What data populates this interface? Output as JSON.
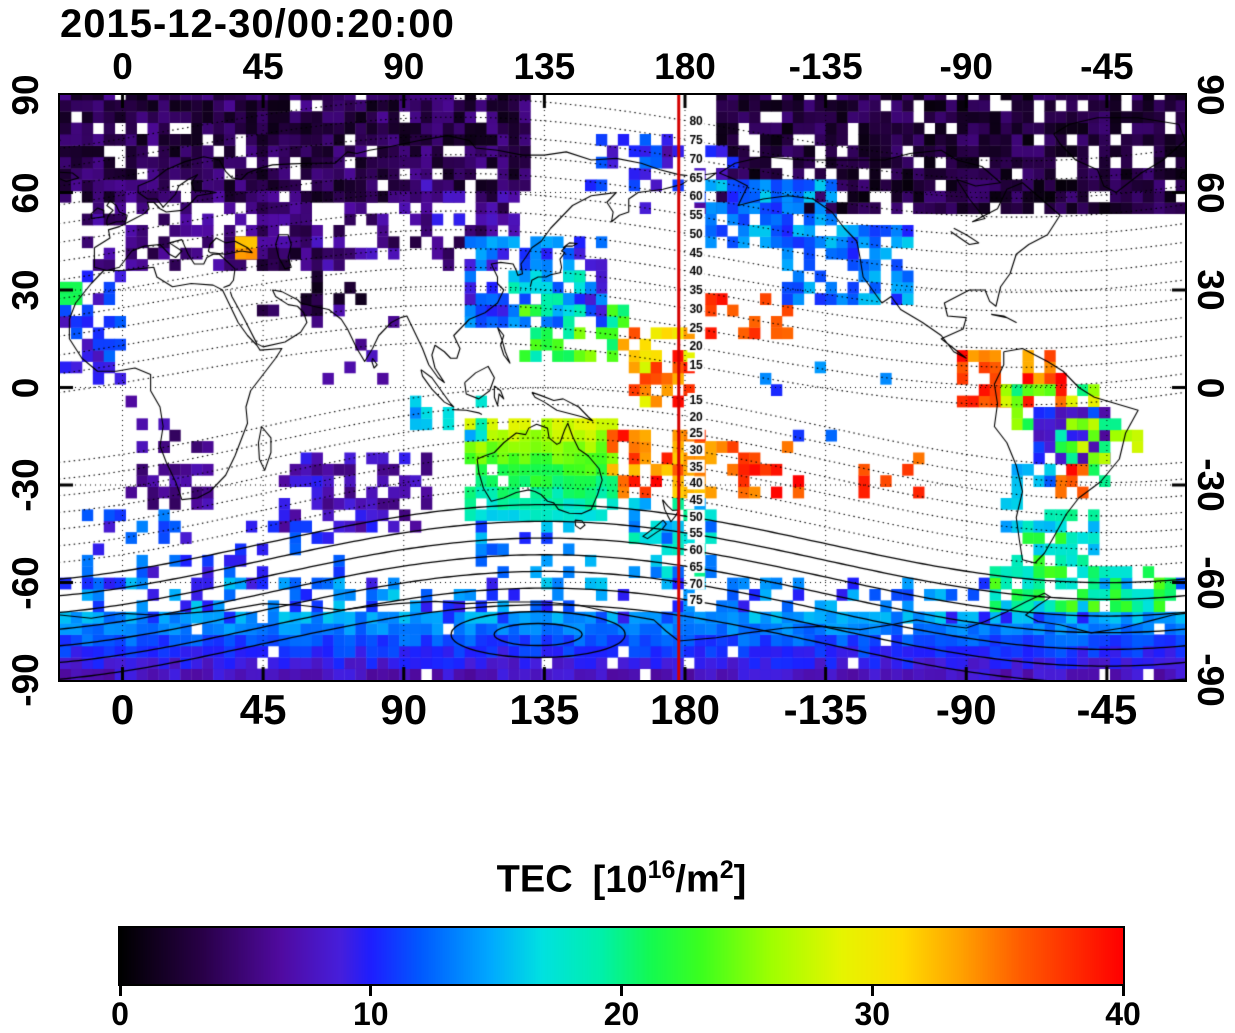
{
  "chart_data": {
    "type": "heatmap",
    "title": "2015-12-30/00:20:00",
    "projection": "equirectangular",
    "lon_range": [
      -20,
      340
    ],
    "lat_range": [
      -90,
      90
    ],
    "lon_tick_labels": [
      "0",
      "45",
      "90",
      "135",
      "180",
      "-135",
      "-90",
      "-45"
    ],
    "lon_tick_positions": [
      0,
      45,
      90,
      135,
      180,
      225,
      270,
      315
    ],
    "lat_tick_labels": [
      "90",
      "60",
      "30",
      "0",
      "-30",
      "-60",
      "-90"
    ],
    "lat_tick_positions": [
      90,
      60,
      30,
      0,
      -30,
      -60,
      -90
    ],
    "grid": {
      "lon_step": 45,
      "lat_step": 30,
      "style": "dotted"
    },
    "red_meridian_lon": 178,
    "red_meridian_color": "#d40000",
    "contours": {
      "kind": "magnetic-latitude",
      "levels_north": [
        80,
        75,
        70,
        65,
        60,
        55,
        50,
        45,
        40,
        35,
        30,
        25,
        20,
        15
      ],
      "levels_south": [
        15,
        20,
        25,
        30,
        35,
        40,
        45,
        50,
        55,
        60,
        65,
        70,
        75
      ]
    },
    "colorbar": {
      "label": "TEC [10^16/m^2]",
      "title_parts": {
        "name": "TEC",
        "open": "[10",
        "exp1": "16",
        "per": "/m",
        "exp2": "2",
        "close": "]"
      },
      "min": 0,
      "max": 40,
      "tick_labels": [
        "0",
        "10",
        "20",
        "30",
        "40"
      ],
      "tick_values": [
        0,
        10,
        20,
        30,
        40
      ],
      "stops": [
        [
          0.0,
          "#000000"
        ],
        [
          0.08,
          "#280046"
        ],
        [
          0.16,
          "#500AA0"
        ],
        [
          0.22,
          "#461EDC"
        ],
        [
          0.25,
          "#1E1EFF"
        ],
        [
          0.3,
          "#005AFF"
        ],
        [
          0.37,
          "#00AAFF"
        ],
        [
          0.42,
          "#00E1E1"
        ],
        [
          0.48,
          "#00F0AA"
        ],
        [
          0.53,
          "#14FA50"
        ],
        [
          0.58,
          "#3CFF1E"
        ],
        [
          0.65,
          "#A0FF00"
        ],
        [
          0.72,
          "#E6F500"
        ],
        [
          0.78,
          "#FFDC00"
        ],
        [
          0.84,
          "#FFA000"
        ],
        [
          0.9,
          "#FF5A00"
        ],
        [
          1.0,
          "#FF0000"
        ]
      ]
    },
    "tec_patches": [
      {
        "region": "arctic-eurasia",
        "lon": [
          -20,
          130
        ],
        "lat": [
          58,
          90
        ],
        "tec": [
          1,
          6
        ],
        "fill": 0.88
      },
      {
        "region": "arctic-america",
        "lon": [
          190,
          340
        ],
        "lat": [
          56,
          90
        ],
        "tec": [
          0.5,
          5
        ],
        "fill": 0.85
      },
      {
        "region": "europe-scatter",
        "lon": [
          -12,
          60
        ],
        "lat": [
          36,
          58
        ],
        "tec": [
          3,
          7
        ],
        "fill": 0.5
      },
      {
        "region": "caspian-cluster",
        "lon": [
          42,
          64
        ],
        "lat": [
          42,
          56
        ],
        "tec": [
          3,
          7
        ],
        "fill": 0.6
      },
      {
        "region": "central-asia",
        "lon": [
          60,
          126
        ],
        "lat": [
          38,
          58
        ],
        "tec": [
          3,
          8
        ],
        "fill": 0.4
      },
      {
        "region": "siberia-blue",
        "lon": [
          92,
          124
        ],
        "lat": [
          50,
          62
        ],
        "tec": [
          6,
          11
        ],
        "fill": 0.25
      },
      {
        "region": "mideast-dark",
        "lon": [
          38,
          78
        ],
        "lat": [
          22,
          40
        ],
        "tec": [
          1,
          5
        ],
        "fill": 0.28
      },
      {
        "region": "black-sea-spot",
        "lon": [
          36,
          40
        ],
        "lat": [
          42,
          46
        ],
        "tec": [
          32,
          35
        ],
        "fill": 1
      },
      {
        "region": "west-africa-atlantic",
        "lon": [
          -20,
          0
        ],
        "lat": [
          3,
          33
        ],
        "tec": [
          7,
          13
        ],
        "fill": 0.5
      },
      {
        "region": "left-edge-green",
        "lon": [
          -20,
          -16
        ],
        "lat": [
          26,
          30
        ],
        "tec": [
          20,
          22
        ],
        "fill": 1
      },
      {
        "region": "south-africa-purple",
        "lon": [
          3,
          28
        ],
        "lat": [
          -36,
          -18
        ],
        "tec": [
          4,
          8
        ],
        "fill": 0.5
      },
      {
        "region": "central-africa-purple",
        "lon": [
          -5,
          18
        ],
        "lat": [
          -18,
          -4
        ],
        "tec": [
          4,
          8
        ],
        "fill": 0.25
      },
      {
        "region": "india-sparse",
        "lon": [
          62,
          92
        ],
        "lat": [
          4,
          24
        ],
        "tec": [
          4,
          8
        ],
        "fill": 0.12
      },
      {
        "region": "east-asia-blue",
        "lon": [
          112,
          152
        ],
        "lat": [
          20,
          46
        ],
        "tec": [
          8,
          15
        ],
        "fill": 0.7
      },
      {
        "region": "japan-green",
        "lon": [
          126,
          150
        ],
        "lat": [
          24,
          36
        ],
        "tec": [
          13,
          20
        ],
        "fill": 0.55
      },
      {
        "region": "philippine-sea-green",
        "lon": [
          128,
          162
        ],
        "lat": [
          8,
          24
        ],
        "tec": [
          17,
          26
        ],
        "fill": 0.45
      },
      {
        "region": "pacific-equator-hot",
        "lon": [
          160,
          180
        ],
        "lat": [
          -6,
          16
        ],
        "tec": [
          28,
          40
        ],
        "fill": 0.5
      },
      {
        "region": "north-pacific-red",
        "lon": [
          188,
          212
        ],
        "lat": [
          16,
          28
        ],
        "tec": [
          35,
          40
        ],
        "fill": 0.5
      },
      {
        "region": "australia-green",
        "lon": [
          112,
          156
        ],
        "lat": [
          -40,
          -11
        ],
        "tec": [
          17,
          28
        ],
        "fill": 0.92,
        "gradient": "lat"
      },
      {
        "region": "nw-australia-cyan",
        "lon": [
          94,
          114
        ],
        "lat": [
          -16,
          -4
        ],
        "tec": [
          13,
          19
        ],
        "fill": 0.38
      },
      {
        "region": "coral-sea-red",
        "lon": [
          156,
          186
        ],
        "lat": [
          -34,
          -14
        ],
        "tec": [
          31,
          40
        ],
        "fill": 0.6
      },
      {
        "region": "south-pacific-red",
        "lon": [
          186,
          216
        ],
        "lat": [
          -32,
          -18
        ],
        "tec": [
          33,
          40
        ],
        "fill": 0.45
      },
      {
        "region": "east-pacific-red",
        "lon": [
          236,
          256
        ],
        "lat": [
          -32,
          -20
        ],
        "tec": [
          35,
          40
        ],
        "fill": 0.4
      },
      {
        "region": "indian-ocean-purple",
        "lon": [
          52,
          98
        ],
        "lat": [
          -42,
          -22
        ],
        "tec": [
          5,
          10
        ],
        "fill": 0.55
      },
      {
        "region": "south-atlantic-scatter",
        "lon": [
          -20,
          12
        ],
        "lat": [
          -60,
          -40
        ],
        "tec": [
          8,
          14
        ],
        "fill": 0.3
      },
      {
        "region": "south-indian-scatter",
        "lon": [
          15,
          70
        ],
        "lat": [
          -62,
          -44
        ],
        "tec": [
          8,
          13
        ],
        "fill": 0.27
      },
      {
        "region": "antarctic-band",
        "lon": [
          -20,
          340
        ],
        "lat": [
          -90,
          -72
        ],
        "tec": [
          7,
          14
        ],
        "fill": 0.97,
        "gradient": "lat"
      },
      {
        "region": "subantarctic-scatter",
        "lon": [
          -20,
          340
        ],
        "lat": [
          -72,
          -60
        ],
        "tec": [
          9,
          16
        ],
        "fill": 0.33
      },
      {
        "region": "sa-equator-red",
        "lon": [
          268,
          302
        ],
        "lat": [
          -6,
          9
        ],
        "tec": [
          33,
          40
        ],
        "fill": 0.55
      },
      {
        "region": "sa-north-yellow",
        "lon": [
          284,
          312
        ],
        "lat": [
          -13,
          1
        ],
        "tec": [
          20,
          30
        ],
        "fill": 0.5
      },
      {
        "region": "brazil-blue-blob",
        "lon": [
          292,
          314
        ],
        "lat": [
          -23,
          -6
        ],
        "tec": [
          6,
          12
        ],
        "fill": 0.9
      },
      {
        "region": "sa-green-ring",
        "lon": [
          300,
          324
        ],
        "lat": [
          -30,
          -12
        ],
        "tec": [
          18,
          28
        ],
        "fill": 0.55
      },
      {
        "region": "sa-red-spot",
        "lon": [
          298,
          308
        ],
        "lat": [
          -34,
          -26
        ],
        "tec": [
          35,
          40
        ],
        "fill": 0.7
      },
      {
        "region": "chile-cyan",
        "lon": [
          283,
          296
        ],
        "lat": [
          -42,
          -24
        ],
        "tec": [
          11,
          17
        ],
        "fill": 0.5
      },
      {
        "region": "patagonia-green",
        "lon": [
          286,
          312
        ],
        "lat": [
          -56,
          -40
        ],
        "tec": [
          15,
          23
        ],
        "fill": 0.5
      },
      {
        "region": "antarctic-peninsula-green",
        "lon": [
          278,
          334
        ],
        "lat": [
          -68,
          -57
        ],
        "tec": [
          17,
          24
        ],
        "fill": 0.6
      },
      {
        "region": "ne-pacific-cyan-upper",
        "lon": [
          188,
          226
        ],
        "lat": [
          44,
          62
        ],
        "tec": [
          10,
          16
        ],
        "fill": 0.7
      },
      {
        "region": "ne-pacific-cyan-lower",
        "lon": [
          214,
          252
        ],
        "lat": [
          28,
          48
        ],
        "tec": [
          10,
          16
        ],
        "fill": 0.6
      },
      {
        "region": "bering-scatter",
        "lon": [
          148,
          196
        ],
        "lat": [
          56,
          74
        ],
        "tec": [
          6,
          12
        ],
        "fill": 0.3
      },
      {
        "region": "arctic-pacific-cyan",
        "lon": [
          148,
          184
        ],
        "lat": [
          68,
          78
        ],
        "tec": [
          8,
          13
        ],
        "fill": 0.3
      },
      {
        "region": "new-zealand-cyan",
        "lon": [
          162,
          188
        ],
        "lat": [
          -56,
          -36
        ],
        "tec": [
          12,
          20
        ],
        "fill": 0.45
      },
      {
        "region": "south-of-australia",
        "lon": [
          110,
          150
        ],
        "lat": [
          -58,
          -44
        ],
        "tec": [
          10,
          16
        ],
        "fill": 0.28
      },
      {
        "region": "central-pacific-sparse",
        "lon": [
          196,
          244
        ],
        "lat": [
          -14,
          6
        ],
        "tec": [
          10,
          16
        ],
        "fill": 0.06
      }
    ]
  }
}
